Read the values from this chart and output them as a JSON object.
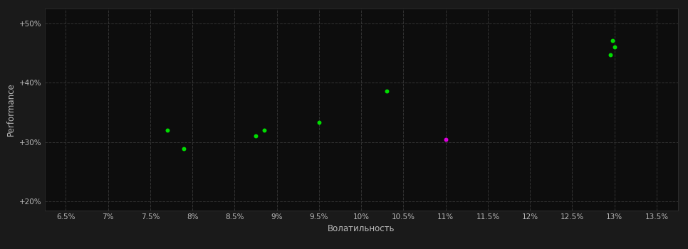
{
  "background_color": "#1a1a1a",
  "plot_bg_color": "#0d0d0d",
  "grid_color": "#333333",
  "grid_linestyle": "--",
  "xlabel": "Волатильность",
  "ylabel": "Performance",
  "xlim": [
    0.0625,
    0.1375
  ],
  "ylim": [
    0.185,
    0.525
  ],
  "xticks": [
    0.065,
    0.07,
    0.075,
    0.08,
    0.085,
    0.09,
    0.095,
    0.1,
    0.105,
    0.11,
    0.115,
    0.12,
    0.125,
    0.13,
    0.135
  ],
  "xtick_labels": [
    "6.5%",
    "7%",
    "7.5%",
    "8%",
    "8.5%",
    "9%",
    "9.5%",
    "10%",
    "10.5%",
    "11%",
    "11.5%",
    "12%",
    "12.5%",
    "13%",
    "13.5%"
  ],
  "yticks": [
    0.2,
    0.3,
    0.4,
    0.5
  ],
  "ytick_labels": [
    "+20%",
    "+30%",
    "+40%",
    "+50%"
  ],
  "green_points": [
    [
      0.077,
      0.32
    ],
    [
      0.079,
      0.289
    ],
    [
      0.0885,
      0.32
    ],
    [
      0.0875,
      0.311
    ],
    [
      0.095,
      0.334
    ],
    [
      0.103,
      0.386
    ],
    [
      0.1298,
      0.471
    ],
    [
      0.13,
      0.461
    ],
    [
      0.1295,
      0.447
    ]
  ],
  "magenta_points": [
    [
      0.11,
      0.305
    ]
  ],
  "green_color": "#00dd00",
  "magenta_color": "#dd00dd",
  "point_size": 18,
  "xlabel_color": "#bbbbbb",
  "ylabel_color": "#bbbbbb",
  "tick_color": "#bbbbbb",
  "tick_fontsize": 7.5,
  "label_fontsize": 8.5
}
